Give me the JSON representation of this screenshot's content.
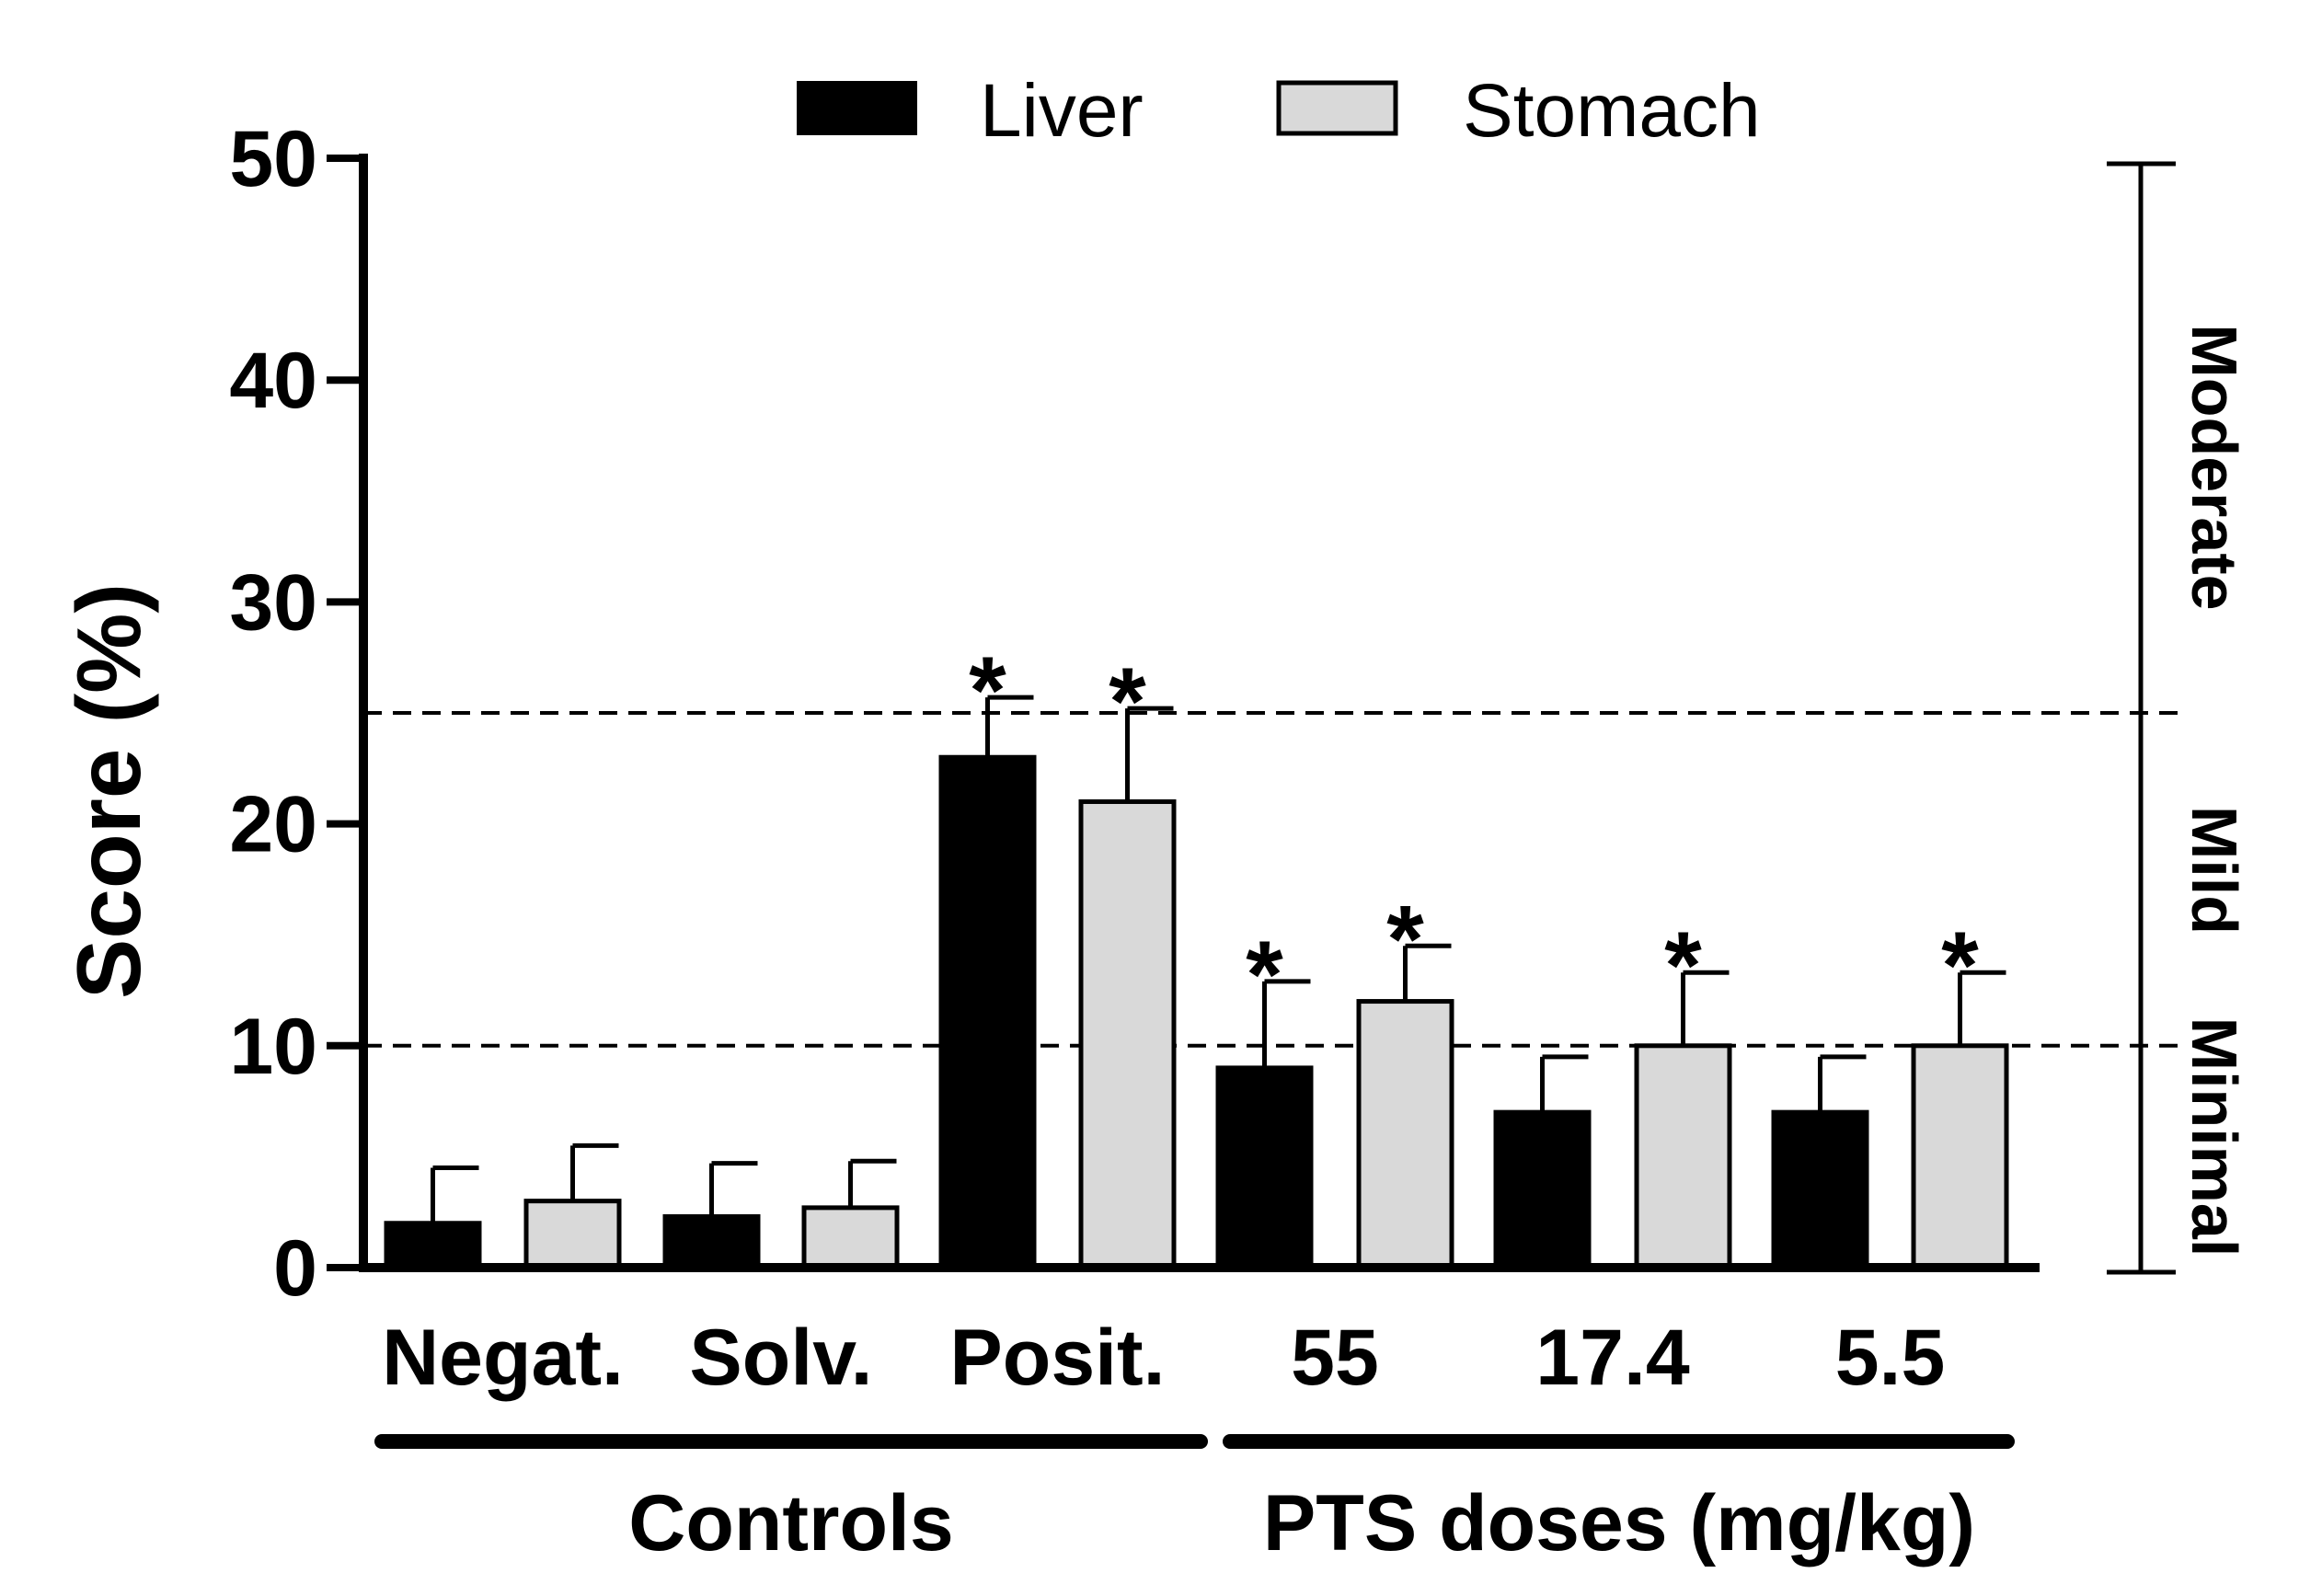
{
  "chart_data": {
    "type": "bar",
    "title": "",
    "ylabel": "Score (%)",
    "ylim": [
      0,
      50
    ],
    "yticks": [
      0,
      10,
      20,
      30,
      40,
      50
    ],
    "categories": [
      "Negat.",
      "Solv.",
      "Posit.",
      "55",
      "17.4",
      "5.5"
    ],
    "series": [
      {
        "name": "Liver",
        "color": "#000000",
        "values": [
          2,
          2.3,
          23,
          9,
          7,
          7
        ],
        "errors": [
          2.5,
          2.4,
          2.7,
          3.9,
          2.5,
          2.5
        ],
        "significant": [
          false,
          false,
          true,
          true,
          false,
          false
        ]
      },
      {
        "name": "Stomach",
        "color": "#d9d9d9",
        "values": [
          3,
          2.7,
          21,
          12,
          10,
          10
        ],
        "errors": [
          2.5,
          2.1,
          4.2,
          2.5,
          3.3,
          3.3
        ],
        "significant": [
          false,
          false,
          true,
          true,
          true,
          true
        ]
      }
    ],
    "significance_marker": "*",
    "thresholds": [
      10,
      25
    ],
    "severity_scale": {
      "range": [
        0,
        50
      ],
      "bands": [
        "Minimal",
        "Mild",
        "Moderate"
      ]
    },
    "groups": [
      {
        "label": "Controls",
        "categories": [
          "Negat.",
          "Solv.",
          "Posit."
        ]
      },
      {
        "label": "PTS doses (mg/kg)",
        "categories": [
          "55",
          "17.4",
          "5.5"
        ]
      }
    ],
    "legend_position": "top-center"
  }
}
